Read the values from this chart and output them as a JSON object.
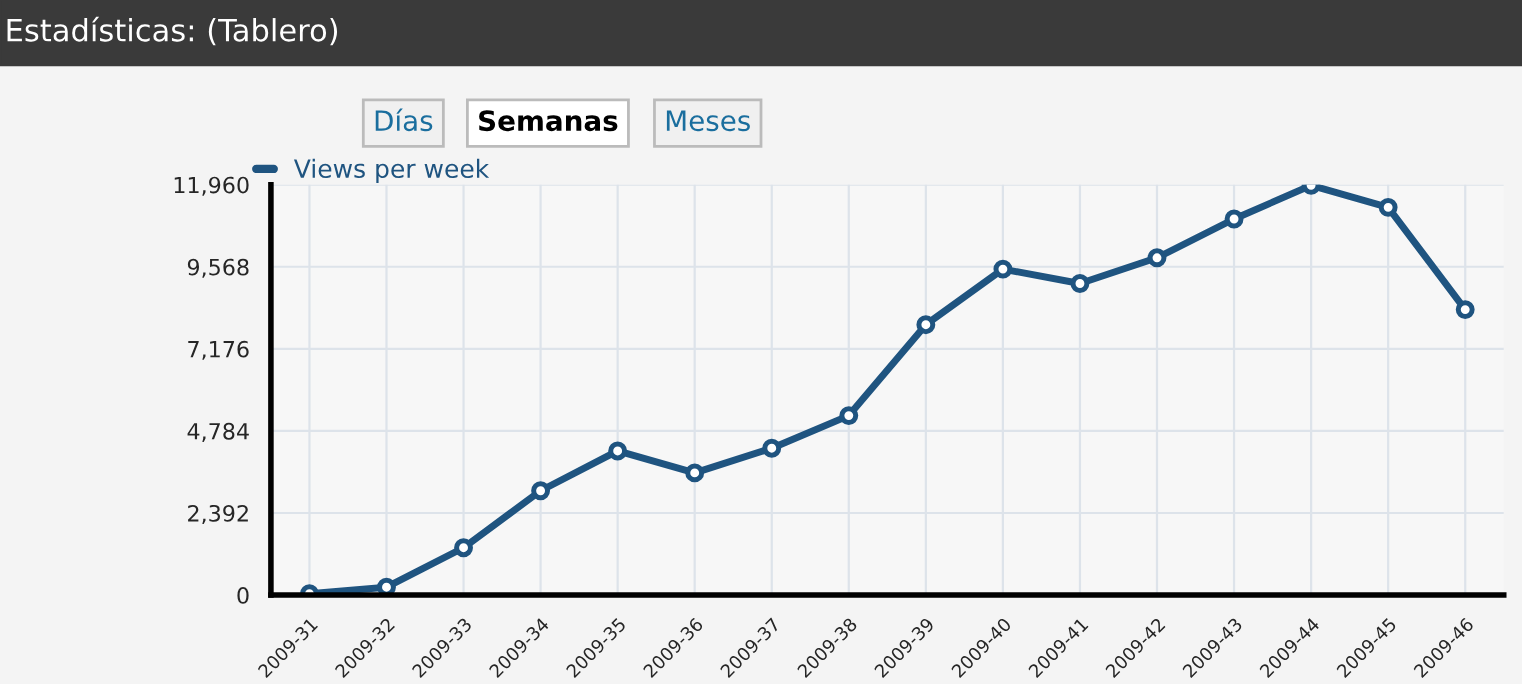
{
  "chart_data": {
    "type": "line",
    "title": "Estadísticas: (Tablero)",
    "annotations": [
      "Días",
      "Semanas",
      "Meses"
    ],
    "categories": [
      "2009-31",
      "2009-32",
      "2009-33",
      "2009-34",
      "2009-35",
      "2009-36",
      "2009-37",
      "2009-38",
      "2009-39",
      "2009-40",
      "2009-41",
      "2009-42",
      "2009-43",
      "2009-44",
      "2009-45",
      "2009-46"
    ],
    "series": [
      {
        "name": "Views per week",
        "color": "#1f5480",
        "values": [
          40,
          230,
          1380,
          3040,
          4200,
          3560,
          4280,
          5230,
          7880,
          9500,
          9080,
          9830,
          10960,
          11940,
          11300,
          8320
        ]
      }
    ],
    "ylim": [
      0,
      11960
    ],
    "yticks": [
      {
        "value": 0,
        "label": "0"
      },
      {
        "value": 2392,
        "label": "2,392"
      },
      {
        "value": 4784,
        "label": "4,784"
      },
      {
        "value": 7176,
        "label": "7,176"
      },
      {
        "value": 9568,
        "label": "9,568"
      },
      {
        "value": 11960,
        "label": "11,960"
      }
    ],
    "grid": true,
    "legend": "top left",
    "marker": "circle",
    "line_style": "solid"
  }
}
